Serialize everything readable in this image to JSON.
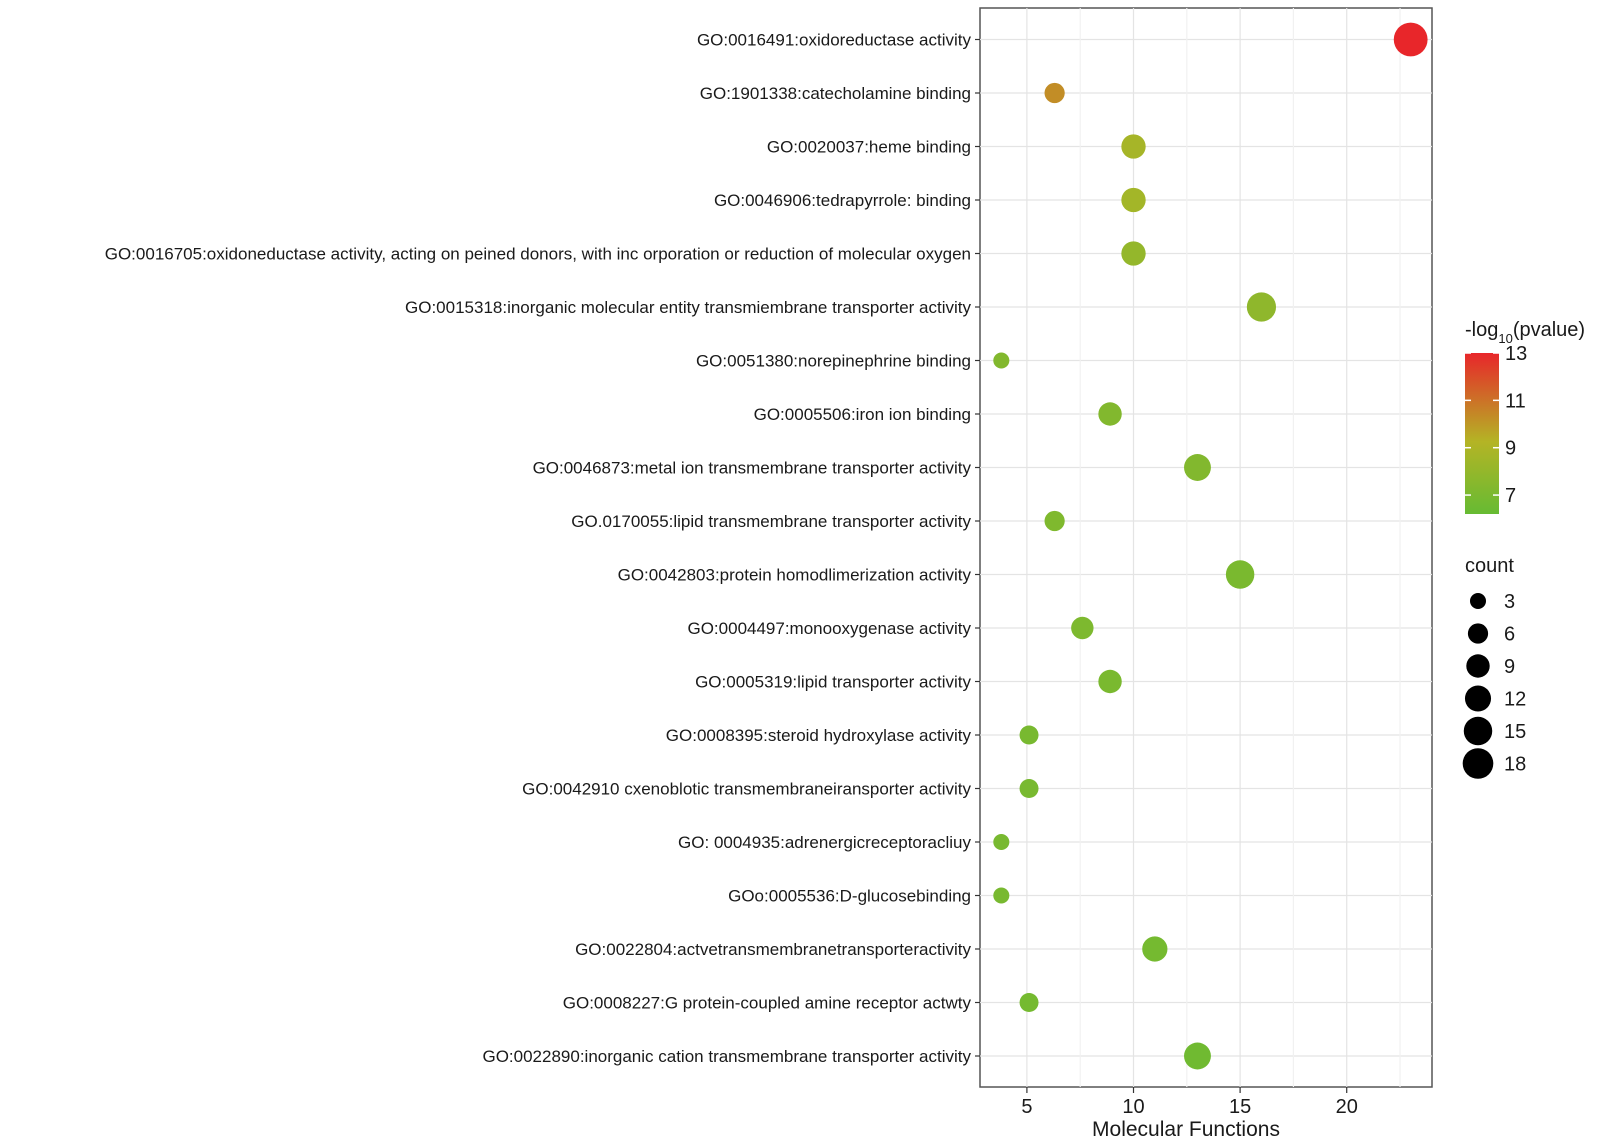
{
  "chart_data": {
    "type": "scatter",
    "title": "",
    "xlabel": "Molecular Functions",
    "ylabel": "",
    "xlim": [
      2.8,
      24
    ],
    "xticks": [
      5,
      10,
      15,
      20
    ],
    "grid": true,
    "categories": [
      "GO:0016491:oxidoreductase activity",
      "GO:1901338:catecholamine binding",
      "GO:0020037:heme binding",
      "GO:0046906:tedrapyrrole: binding",
      "GO:0016705:oxidoneductase activity, acting on peined donors, with inc orporation or reduction of molecular oxygen",
      "GO:0015318:inorganic molecular entity transmiembrane transporter activity",
      "GO:0051380:norepinephrine binding",
      "GO:0005506:iron ion binding",
      "GO:0046873:metal ion transmembrane transporter activity",
      "GO.0170055:lipid transmembrane transporter activity",
      "GO:0042803:protein homodlimerization activity",
      "GO:0004497:monooxygenase activity",
      "GO:0005319:lipid transporter activity",
      "GO:0008395:steroid hydroxylase activity",
      "GO:0042910 cxenoblotic transmembraneiransporter activity",
      "GO: 0004935:adrenergicreceptoracliuy",
      "GOo:0005536:D-glucosebinding",
      "GO:0022804:actvetransmembranetransporteractivity",
      "GO:0008227:G protein-coupled amine receptor actwty",
      "GO:0022890:inorganic cation transmembrane transporter activity"
    ],
    "x": [
      23,
      6.3,
      10,
      10,
      10,
      16,
      3.8,
      8.9,
      13,
      6.3,
      15,
      7.6,
      8.9,
      5.1,
      5.1,
      3.8,
      3.8,
      11,
      5.1,
      13
    ],
    "count": [
      23,
      6,
      10,
      10,
      10,
      16,
      3,
      9,
      13,
      6,
      15,
      8,
      9,
      5,
      5,
      3,
      3,
      11,
      5,
      13
    ],
    "neg_log10_pvalue": [
      13,
      10.3,
      8.7,
      8.6,
      8.0,
      7.8,
      7.3,
      7.3,
      7.3,
      7.2,
      7.0,
      7.1,
      7.0,
      6.9,
      6.9,
      6.9,
      6.9,
      6.8,
      6.8,
      6.6
    ],
    "color_scale": {
      "title_prefix": "-log",
      "title_sub": "10",
      "title_suffix": "(pvalue)",
      "min": 6.2,
      "max": 13,
      "ticks": [
        13,
        11,
        9,
        7
      ],
      "low_color": "#66bb33",
      "mid_color": "#b4b425",
      "high_color": "#e8262a"
    },
    "size_legend": {
      "title": "count",
      "values": [
        3,
        6,
        9,
        12,
        15,
        18
      ]
    }
  }
}
